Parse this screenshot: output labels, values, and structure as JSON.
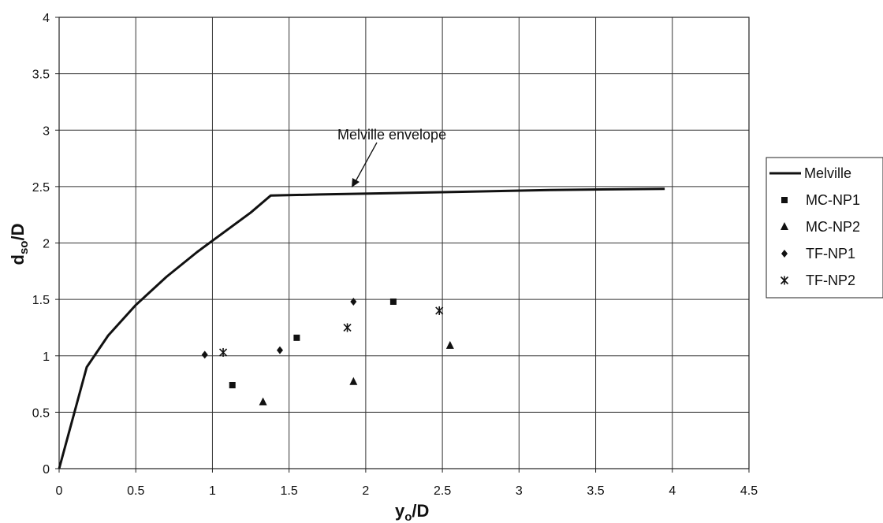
{
  "chart_data": {
    "type": "scatter",
    "xlabel_main": "y",
    "xlabel_sub": "o",
    "xlabel_tail": "/D",
    "ylabel_main": "d",
    "ylabel_sub": "so",
    "ylabel_tail": "/D",
    "xlim": [
      0,
      4.5
    ],
    "ylim": [
      0,
      4
    ],
    "x_ticks": [
      "0",
      "0.5",
      "1",
      "1.5",
      "2",
      "2.5",
      "3",
      "3.5",
      "4",
      "4.5"
    ],
    "y_ticks": [
      "0",
      "0.5",
      "1",
      "1.5",
      "2",
      "2.5",
      "3",
      "3.5",
      "4"
    ],
    "grid": true,
    "legend_position": "right",
    "annotation": {
      "text": "Melville envelope",
      "points_to": [
        1.9,
        2.44
      ]
    },
    "series": [
      {
        "name": "Melville",
        "kind": "line",
        "color": "#111111",
        "points": [
          [
            0,
            0
          ],
          [
            0.18,
            0.9
          ],
          [
            0.32,
            1.18
          ],
          [
            0.5,
            1.45
          ],
          [
            0.7,
            1.7
          ],
          [
            0.9,
            1.92
          ],
          [
            1.1,
            2.12
          ],
          [
            1.25,
            2.27
          ],
          [
            1.38,
            2.42
          ],
          [
            1.7,
            2.43
          ],
          [
            2.5,
            2.45
          ],
          [
            3.2,
            2.47
          ],
          [
            3.95,
            2.48
          ]
        ]
      },
      {
        "name": "MC-NP1",
        "kind": "scatter",
        "marker": "square",
        "points": [
          [
            1.13,
            0.74
          ],
          [
            1.55,
            1.16
          ],
          [
            2.18,
            1.48
          ]
        ]
      },
      {
        "name": "MC-NP2",
        "kind": "scatter",
        "marker": "triangle",
        "points": [
          [
            1.33,
            0.59
          ],
          [
            1.92,
            0.77
          ],
          [
            2.55,
            1.09
          ]
        ]
      },
      {
        "name": "TF-NP1",
        "kind": "scatter",
        "marker": "diamond",
        "points": [
          [
            0.95,
            1.01
          ],
          [
            1.44,
            1.05
          ],
          [
            1.92,
            1.48
          ]
        ]
      },
      {
        "name": "TF-NP2",
        "kind": "scatter",
        "marker": "star",
        "points": [
          [
            1.07,
            1.03
          ],
          [
            1.88,
            1.25
          ],
          [
            2.48,
            1.4
          ]
        ]
      }
    ]
  }
}
